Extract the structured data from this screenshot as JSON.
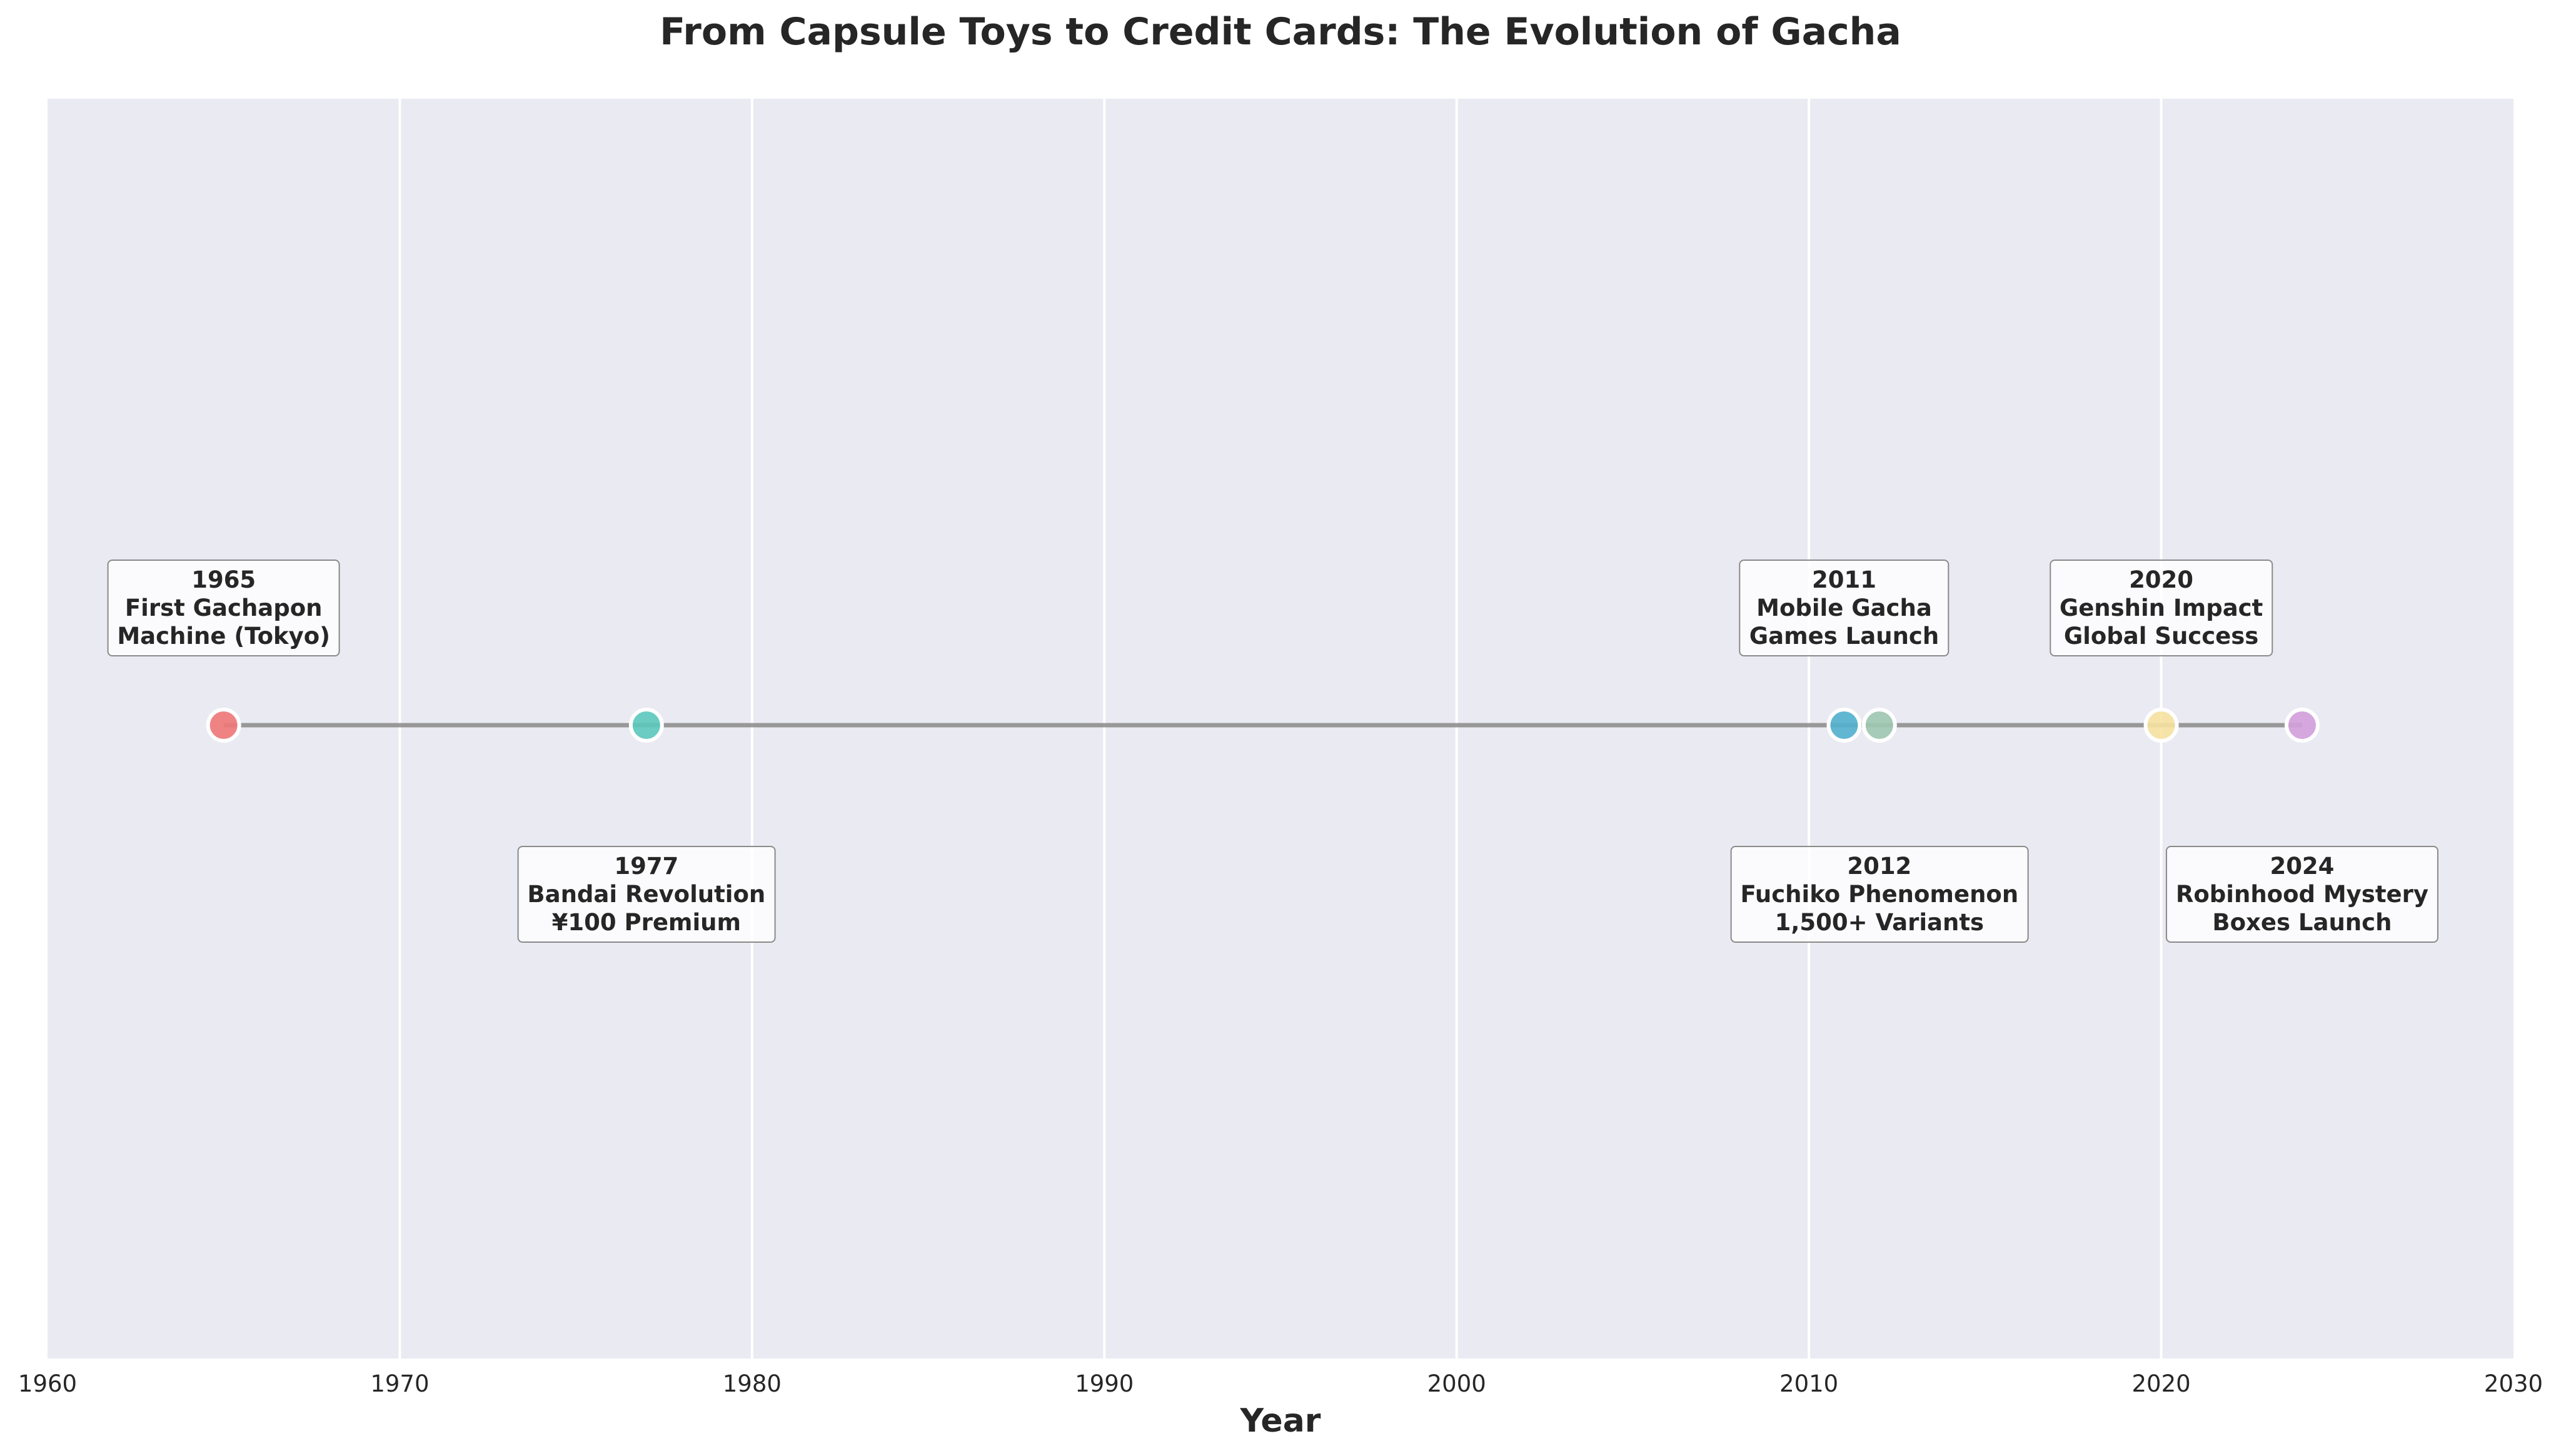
{
  "chart_data": {
    "type": "scatter",
    "title": "From Capsule Toys to Credit Cards: The Evolution of Gacha",
    "xlabel": "Year",
    "ylabel": "",
    "xlim": [
      1960,
      2030
    ],
    "xticks": [
      "1960",
      "1970",
      "1980",
      "1990",
      "2000",
      "2010",
      "2020",
      "2030"
    ],
    "grid": "vertical",
    "connector_line": true,
    "events": [
      {
        "year": 1965,
        "year_label": "1965",
        "lines": [
          "First Gachapon",
          "Machine (Tokyo)"
        ],
        "color": "#F07878",
        "label_position": "above"
      },
      {
        "year": 1977,
        "year_label": "1977",
        "lines": [
          "Bandai Revolution",
          "¥100 Premium"
        ],
        "color": "#5CC9BD",
        "label_position": "below"
      },
      {
        "year": 2011,
        "year_label": "2011",
        "lines": [
          "Mobile Gacha",
          "Games Launch"
        ],
        "color": "#52B1CE",
        "label_position": "above"
      },
      {
        "year": 2012,
        "year_label": "2012",
        "lines": [
          "Fuchiko Phenomenon",
          "1,500+ Variants"
        ],
        "color": "#9FC8B1",
        "label_position": "below"
      },
      {
        "year": 2020,
        "year_label": "2020",
        "lines": [
          "Genshin Impact",
          "Global Success"
        ],
        "color": "#F7E2A0",
        "label_position": "above"
      },
      {
        "year": 2024,
        "year_label": "2024",
        "lines": [
          "Robinhood Mystery",
          "Boxes Launch"
        ],
        "color": "#D3A0DB",
        "label_position": "below"
      }
    ]
  }
}
